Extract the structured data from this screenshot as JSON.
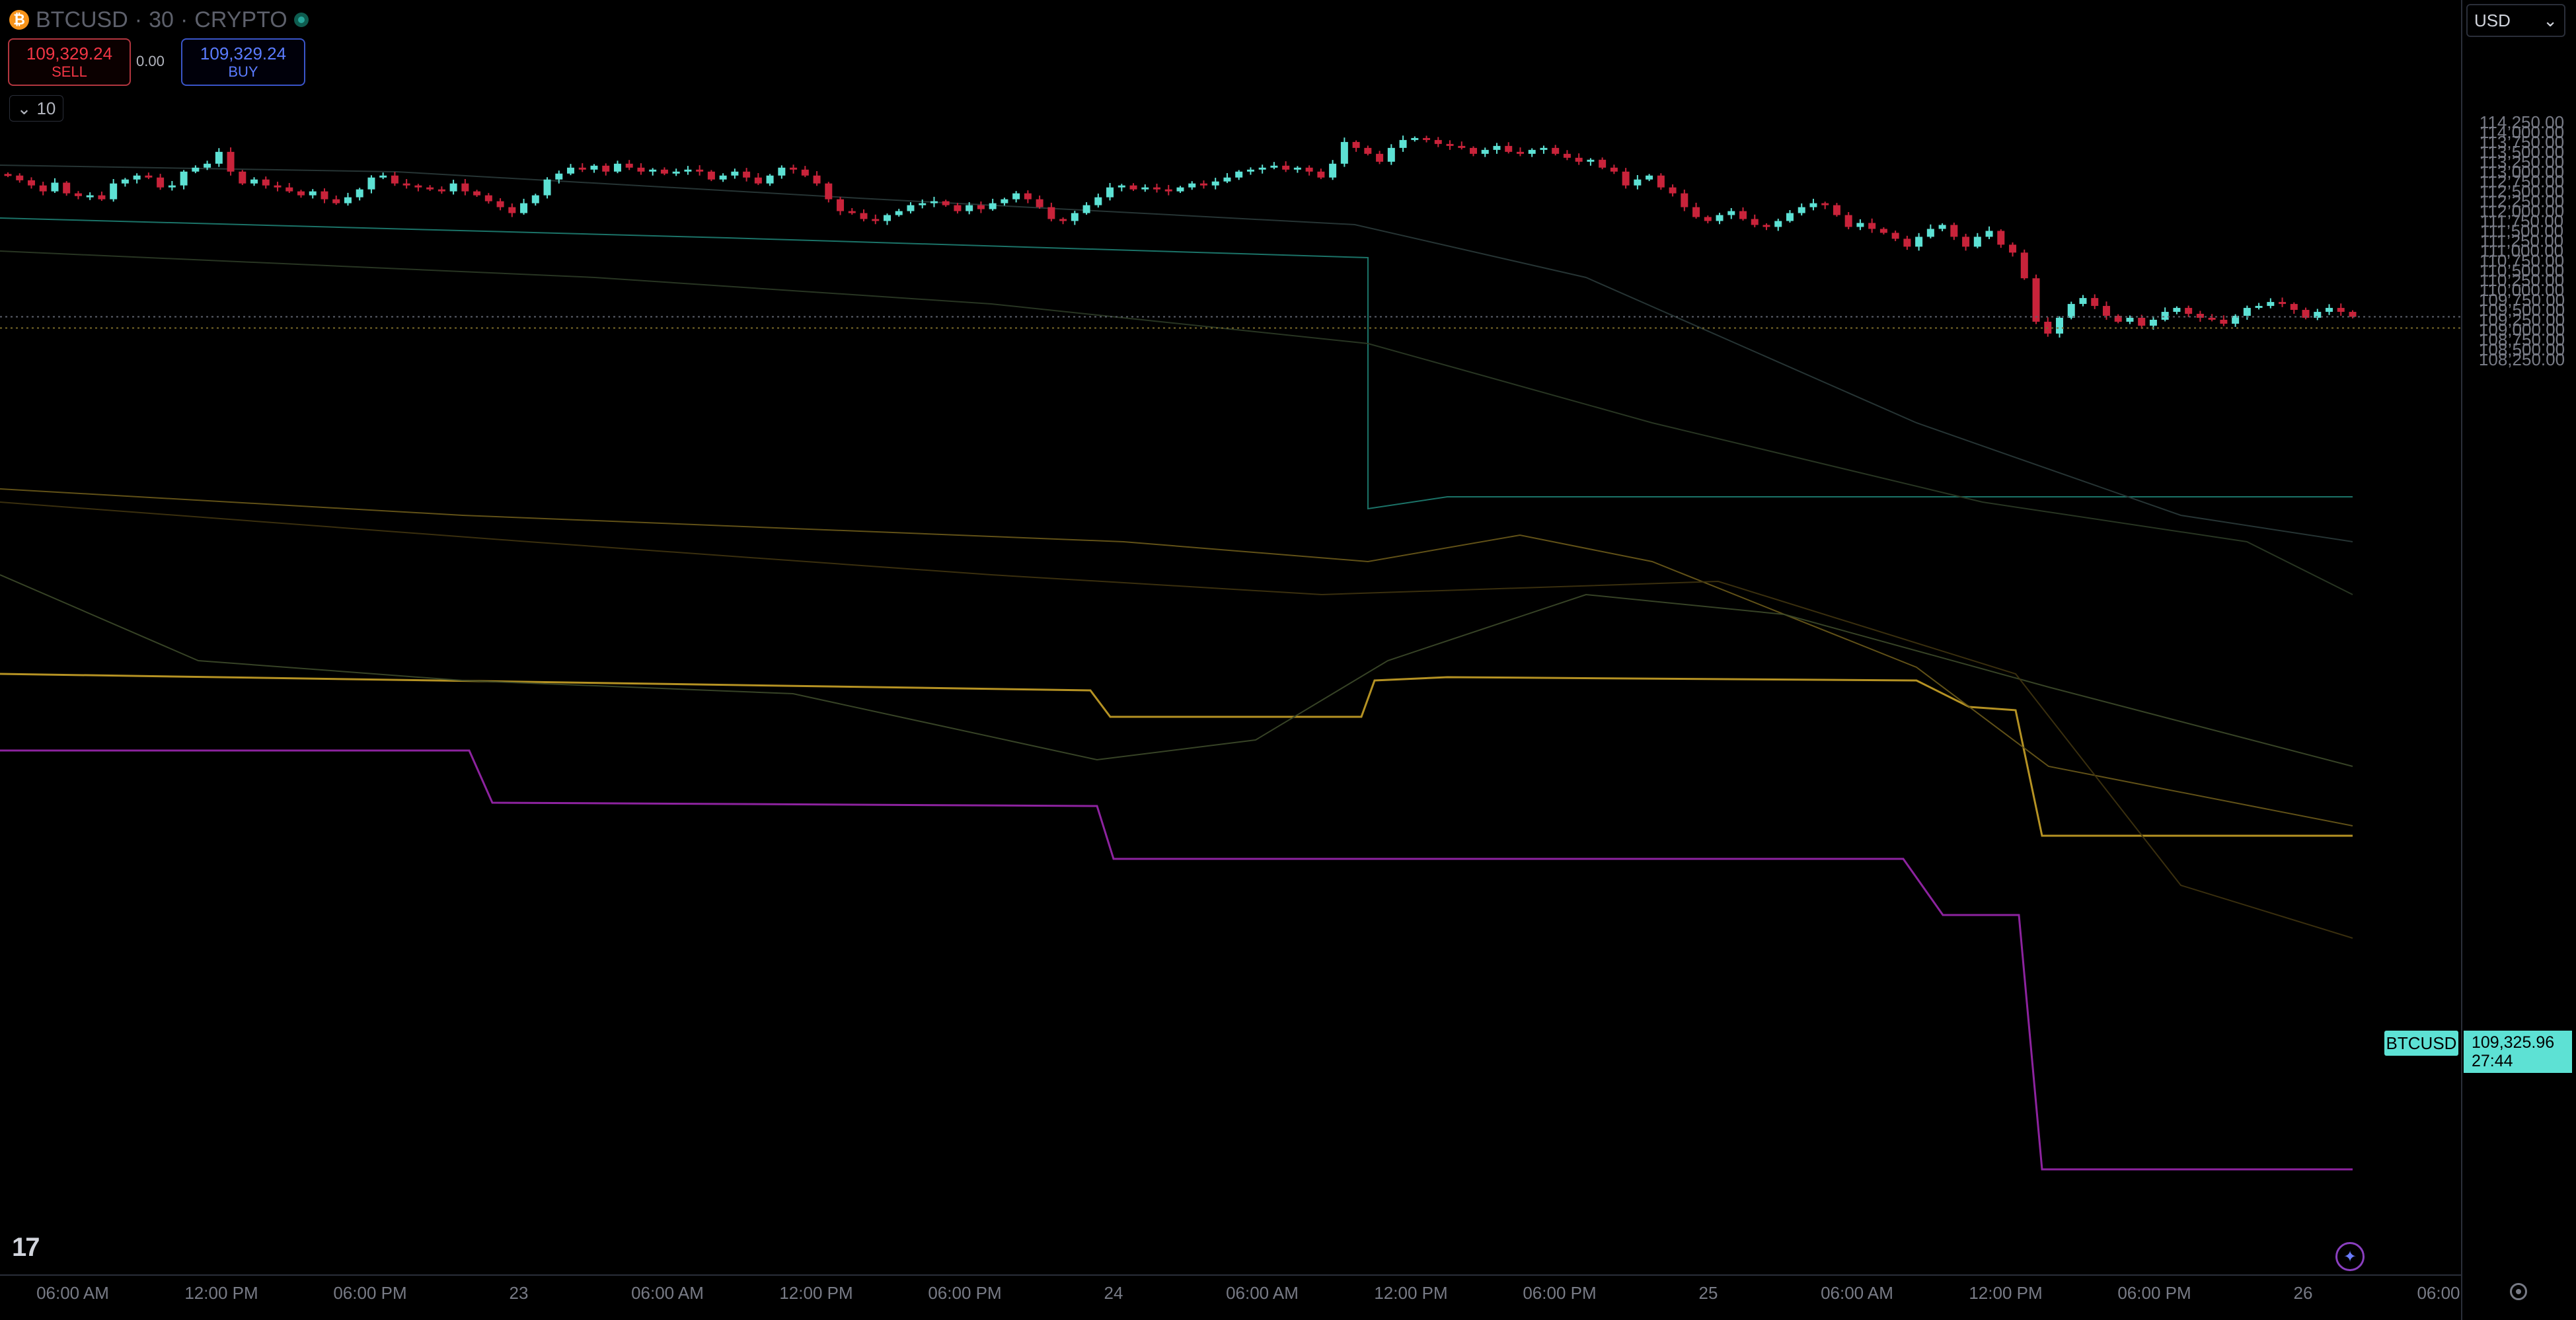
{
  "header": {
    "symbol": "BTCUSD",
    "interval": "30",
    "exchange": "CRYPTO",
    "coin_icon": "bitcoin-icon",
    "status_icon": "market-open-dot-icon"
  },
  "trade": {
    "sell_price": "109,329.24",
    "sell_label": "SELL",
    "spread": "0.00",
    "buy_price": "109,329.24",
    "buy_label": "BUY"
  },
  "indicator_count": "10",
  "currency_select": "USD",
  "price_tag": {
    "symbol": "BTCUSD",
    "price": "109,325.96",
    "countdown": "27:44"
  },
  "colors": {
    "bull": "#5de1d4",
    "bear": "#c8233a",
    "purple": "#9c27b0",
    "gold": "#c9a227",
    "teal_line": "#1e7f73",
    "bg": "#000000"
  },
  "chart_data": {
    "type": "candlestick",
    "symbol": "BTCUSD",
    "interval": "30",
    "ylim": [
      108100,
      114500
    ],
    "y_ticks": [
      108250,
      108500,
      108750,
      109000,
      109250,
      109500,
      109750,
      110000,
      110250,
      110500,
      110750,
      111000,
      111250,
      111500,
      111750,
      112000,
      112250,
      112500,
      112750,
      113000,
      113250,
      113500,
      113750,
      114000,
      114250
    ],
    "y_tick_labels": [
      "108,250.00",
      "108,500.00",
      "108,750.00",
      "109,000.00",
      "109,250.00",
      "109,500.00",
      "109,750.00",
      "110,000.00",
      "110,250.00",
      "110,500.00",
      "110,750.00",
      "111,000.00",
      "111,250.00",
      "111,500.00",
      "111,750.00",
      "112,000.00",
      "112,250.00",
      "112,500.00",
      "112,750.00",
      "113,000.00",
      "113,250.00",
      "113,500.00",
      "113,750.00",
      "114,000.00",
      "114,250.00"
    ],
    "x_ticks": [
      "06:00 AM",
      "12:00 PM",
      "06:00 PM",
      "23",
      "06:00 AM",
      "12:00 PM",
      "06:00 PM",
      "24",
      "06:00 AM",
      "12:00 PM",
      "06:00 PM",
      "25",
      "06:00 AM",
      "12:00 PM",
      "06:00 PM",
      "26",
      "06:00"
    ],
    "last_price": 109325.96,
    "bid_line": 109325.96,
    "ref_line": 109040,
    "closes": [
      112900,
      112780,
      112650,
      112500,
      112720,
      112450,
      112380,
      112400,
      112300,
      112700,
      112800,
      112900,
      112850,
      112600,
      112650,
      113000,
      113100,
      113200,
      113500,
      113000,
      112700,
      112800,
      112650,
      112600,
      112500,
      112400,
      112500,
      112300,
      112200,
      112350,
      112550,
      112850,
      112900,
      112700,
      112650,
      112600,
      112550,
      112500,
      112700,
      112500,
      112400,
      112250,
      112100,
      111950,
      112200,
      112400,
      112800,
      112950,
      113100,
      113050,
      113150,
      113000,
      113200,
      113100,
      113000,
      113050,
      112950,
      113000,
      113050,
      113000,
      112800,
      112900,
      113000,
      112850,
      112700,
      112900,
      113100,
      113050,
      112900,
      112700,
      112300,
      112000,
      111950,
      111800,
      111750,
      111900,
      112000,
      112150,
      112200,
      112250,
      112150,
      112000,
      112150,
      112050,
      112200,
      112300,
      112450,
      112300,
      112100,
      111800,
      111750,
      111950,
      112150,
      112350,
      112600,
      112650,
      112550,
      112600,
      112550,
      112500,
      112600,
      112700,
      112650,
      112750,
      112850,
      113000,
      113050,
      113100,
      113150,
      113050,
      113100,
      113000,
      112850,
      113200,
      113750,
      113600,
      113450,
      113250,
      113600,
      113800,
      113850,
      113800,
      113700,
      113650,
      113600,
      113450,
      113550,
      113650,
      113500,
      113450,
      113550,
      113600,
      113450,
      113350,
      113250,
      113300,
      113100,
      113000,
      112650,
      112800,
      112900,
      112600,
      112450,
      112100,
      111850,
      111750,
      111900,
      112000,
      111800,
      111650,
      111600,
      111750,
      111950,
      112100,
      112200,
      112150,
      111900,
      111600,
      111700,
      111550,
      111450,
      111300,
      111100,
      111350,
      111550,
      111650,
      111350,
      111100,
      111350,
      111500,
      111150,
      110950,
      110300,
      109200,
      108900,
      109300,
      109650,
      109800,
      109600,
      109350,
      109200,
      109300,
      109100,
      109250,
      109450,
      109550,
      109400,
      109300,
      109250,
      109150,
      109350,
      109550,
      109600,
      109700,
      109650,
      109500,
      109300,
      109450,
      109550,
      109450,
      109325
    ]
  }
}
